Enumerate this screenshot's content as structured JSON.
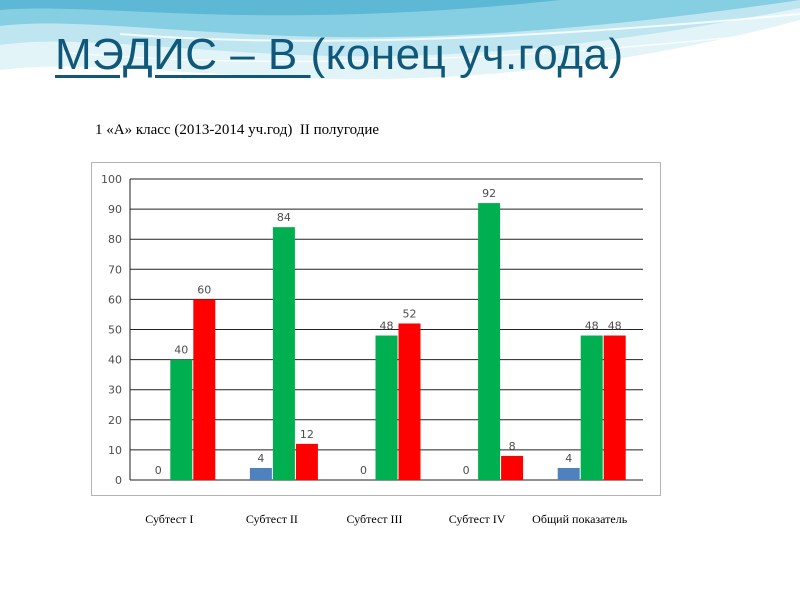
{
  "slide": {
    "title_main": "МЭДИС – В ",
    "title_suffix": "(конец уч.года)"
  },
  "colors": {
    "title": "#10587a",
    "wave_light": "#bfe6f0",
    "wave_mid": "#86cfe3",
    "wave_dark": "#3aa6c8"
  },
  "chart_data": {
    "type": "bar",
    "title": "1 «А» класс (2013-2014 уч.год)  II полугодие",
    "categories": [
      "Субтест I",
      "Субтест II",
      "Субтест III",
      "Субтест IV",
      "Общий показатель"
    ],
    "series": [
      {
        "values": [
          0,
          4,
          0,
          0,
          4
        ],
        "color": "#4f81bd"
      },
      {
        "values": [
          40,
          84,
          48,
          92,
          48
        ],
        "color": "#00b050"
      },
      {
        "values": [
          60,
          12,
          52,
          8,
          48
        ],
        "color": "#ff0000"
      }
    ],
    "ylim": [
      0,
      100
    ],
    "yticks": [
      0,
      10,
      20,
      30,
      40,
      50,
      60,
      70,
      80,
      90,
      100
    ],
    "grid": true,
    "legend": "none"
  }
}
